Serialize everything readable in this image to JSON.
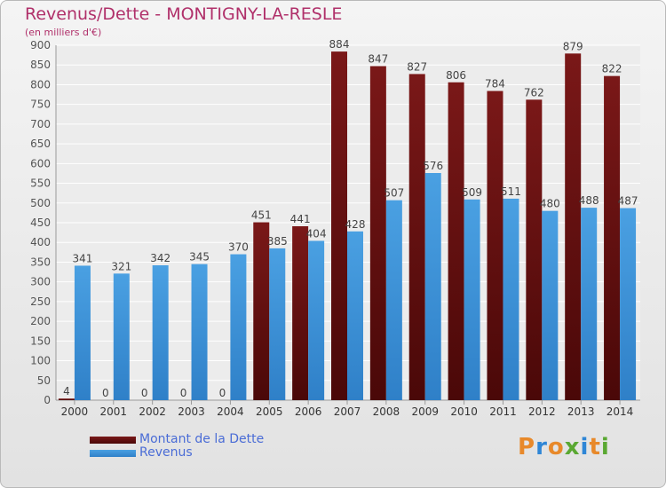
{
  "title": "Revenus/Dette - MONTIGNY-LA-RESLE",
  "subtitle": "(en milliers d'€)",
  "logo_text": "Proxiti",
  "colors": {
    "debt": "#7a1818",
    "debt_dark": "#4a0808",
    "revenue": "#4aa0e2",
    "revenue_dark": "#2f80c8",
    "title": "#b0306a",
    "legend_text": "#4a6cd6"
  },
  "chart_data": {
    "type": "bar",
    "title": "Revenus/Dette - MONTIGNY-LA-RESLE",
    "ylabel": "(en milliers d'€)",
    "xlabel": "",
    "categories": [
      "2000",
      "2001",
      "2002",
      "2003",
      "2004",
      "2005",
      "2006",
      "2007",
      "2008",
      "2009",
      "2010",
      "2011",
      "2012",
      "2013",
      "2014"
    ],
    "series": [
      {
        "name": "Montant de la Dette",
        "values": [
          4,
          0,
          0,
          0,
          0,
          451,
          441,
          884,
          847,
          827,
          806,
          784,
          762,
          879,
          822
        ]
      },
      {
        "name": "Revenus",
        "values": [
          341,
          321,
          342,
          345,
          370,
          385,
          404,
          428,
          507,
          576,
          509,
          511,
          480,
          488,
          487
        ]
      }
    ],
    "ylim": [
      0,
      900
    ],
    "yticks": [
      0,
      50,
      100,
      150,
      200,
      250,
      300,
      350,
      400,
      450,
      500,
      550,
      600,
      650,
      700,
      750,
      800,
      850,
      900
    ],
    "grid": true,
    "legend_position": "bottom-left"
  }
}
